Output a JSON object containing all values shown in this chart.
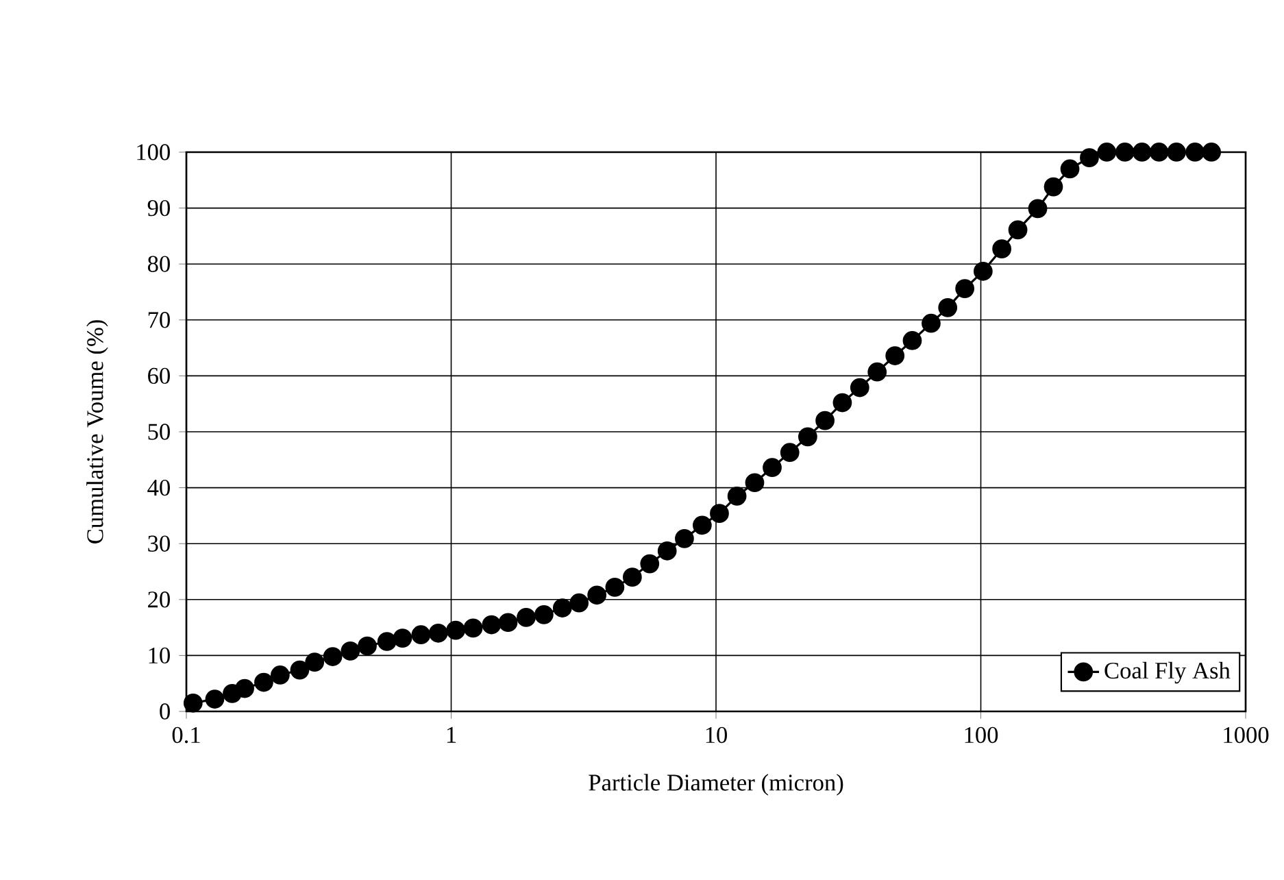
{
  "chart_data": {
    "type": "line",
    "xlabel": "Particle Diameter (micron)",
    "ylabel": "Cumulative Voume (%)",
    "log": "x",
    "grid": true,
    "legend": "bottom right",
    "marker": "circle",
    "line_style": "solid",
    "xlim": [
      0.1,
      1000
    ],
    "xticks": [
      0.1,
      1,
      10,
      100,
      1000
    ],
    "ylim": [
      0,
      100
    ],
    "yticks": [
      0,
      10,
      20,
      30,
      40,
      50,
      60,
      70,
      80,
      90,
      100
    ],
    "x": [
      0.106,
      0.128,
      0.149,
      0.166,
      0.196,
      0.226,
      0.268,
      0.305,
      0.357,
      0.416,
      0.482,
      0.572,
      0.655,
      0.769,
      0.894,
      1.04,
      1.21,
      1.42,
      1.64,
      1.92,
      2.24,
      2.63,
      3.04,
      3.55,
      4.15,
      4.83,
      5.62,
      6.54,
      7.6,
      8.87,
      10.3,
      12.0,
      14.0,
      16.3,
      19.0,
      22.2,
      25.8,
      30.0,
      34.9,
      40.6,
      47.4,
      55.1,
      64.9,
      75.0,
      87.0,
      102,
      120,
      138,
      164,
      188,
      217,
      257,
      299,
      350,
      406,
      471,
      548,
      644,
      743
    ],
    "series": [
      {
        "name": "Coal Fly Ash",
        "color": "#000000",
        "values": [
          1.5,
          2.2,
          3.2,
          4.1,
          5.2,
          6.5,
          7.4,
          8.8,
          9.8,
          10.8,
          11.7,
          12.5,
          13.1,
          13.7,
          14.0,
          14.5,
          14.9,
          15.5,
          15.9,
          16.8,
          17.3,
          18.5,
          19.4,
          20.8,
          22.2,
          24.0,
          26.4,
          28.7,
          30.9,
          33.3,
          35.4,
          38.5,
          40.9,
          43.6,
          46.3,
          49.1,
          52.0,
          55.2,
          57.9,
          60.7,
          63.6,
          66.3,
          69.4,
          72.2,
          75.6,
          78.7,
          82.7,
          86.1,
          89.9,
          93.8,
          97.0,
          99.0,
          100,
          100,
          100,
          100,
          100,
          100,
          100
        ]
      }
    ]
  }
}
